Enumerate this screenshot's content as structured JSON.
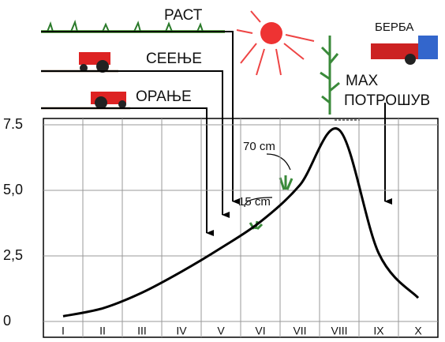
{
  "chart_data": {
    "type": "line",
    "categories": [
      "I",
      "II",
      "III",
      "IV",
      "V",
      "VI",
      "VII",
      "VIII",
      "IX",
      "X"
    ],
    "values": [
      0.2,
      0.5,
      1.1,
      1.9,
      2.8,
      3.8,
      5.2,
      7.3,
      2.6,
      0.9
    ],
    "color": "#000000",
    "ylim": [
      0,
      7.5
    ],
    "yticks": [
      0,
      {
        "value": 2.5,
        "label": "2,5"
      },
      {
        "value": 5,
        "label": "5,0"
      },
      7.5
    ],
    "grid": true,
    "annotations": [
      "РАСТ",
      "СЕЕЊЕ",
      "ОРАЊЕ",
      "БЕРБА",
      "MAX",
      "ПОТРОШУВ",
      "70 cm",
      "15 cm"
    ]
  }
}
